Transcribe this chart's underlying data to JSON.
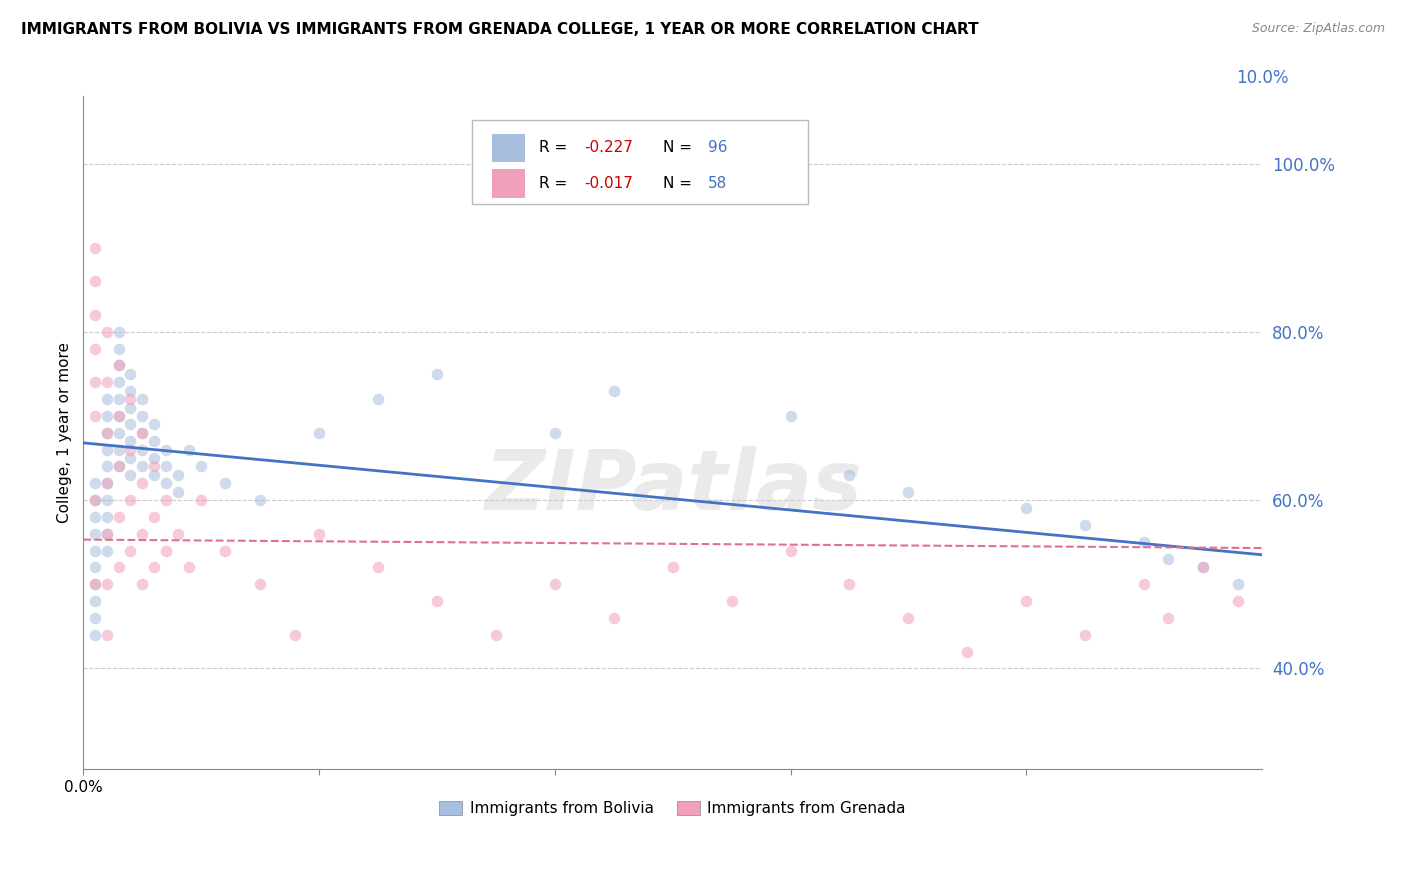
{
  "title": "IMMIGRANTS FROM BOLIVIA VS IMMIGRANTS FROM GRENADA COLLEGE, 1 YEAR OR MORE CORRELATION CHART",
  "source": "Source: ZipAtlas.com",
  "ylabel": "College, 1 year or more",
  "right_yticks": [
    "100.0%",
    "80.0%",
    "60.0%",
    "40.0%"
  ],
  "right_ytick_vals": [
    1.0,
    0.8,
    0.6,
    0.4
  ],
  "bolivia_color": "#a8bede",
  "grenada_color": "#f0a0b8",
  "bolivia_line_color": "#4472c4",
  "grenada_line_color": "#e07090",
  "right_axis_color": "#4472c4",
  "watermark": "ZIPatlas",
  "bolivia_scatter_x": [
    0.001,
    0.001,
    0.001,
    0.001,
    0.001,
    0.001,
    0.001,
    0.001,
    0.001,
    0.001,
    0.002,
    0.002,
    0.002,
    0.002,
    0.002,
    0.002,
    0.002,
    0.002,
    0.002,
    0.002,
    0.003,
    0.003,
    0.003,
    0.003,
    0.003,
    0.003,
    0.003,
    0.003,
    0.003,
    0.004,
    0.004,
    0.004,
    0.004,
    0.004,
    0.004,
    0.004,
    0.005,
    0.005,
    0.005,
    0.005,
    0.005,
    0.006,
    0.006,
    0.006,
    0.006,
    0.007,
    0.007,
    0.007,
    0.008,
    0.008,
    0.009,
    0.01,
    0.012,
    0.015,
    0.02,
    0.025,
    0.03,
    0.04,
    0.045,
    0.06,
    0.065,
    0.07,
    0.08,
    0.085,
    0.09,
    0.092,
    0.095,
    0.098
  ],
  "bolivia_scatter_y": [
    0.62,
    0.6,
    0.58,
    0.56,
    0.54,
    0.52,
    0.5,
    0.48,
    0.46,
    0.44,
    0.72,
    0.7,
    0.68,
    0.66,
    0.64,
    0.62,
    0.6,
    0.58,
    0.56,
    0.54,
    0.8,
    0.78,
    0.76,
    0.74,
    0.72,
    0.7,
    0.68,
    0.66,
    0.64,
    0.75,
    0.73,
    0.71,
    0.69,
    0.67,
    0.65,
    0.63,
    0.72,
    0.7,
    0.68,
    0.66,
    0.64,
    0.69,
    0.67,
    0.65,
    0.63,
    0.66,
    0.64,
    0.62,
    0.63,
    0.61,
    0.66,
    0.64,
    0.62,
    0.6,
    0.68,
    0.72,
    0.75,
    0.68,
    0.73,
    0.7,
    0.63,
    0.61,
    0.59,
    0.57,
    0.55,
    0.53,
    0.52,
    0.5
  ],
  "grenada_scatter_x": [
    0.001,
    0.001,
    0.001,
    0.001,
    0.001,
    0.001,
    0.001,
    0.001,
    0.002,
    0.002,
    0.002,
    0.002,
    0.002,
    0.002,
    0.002,
    0.003,
    0.003,
    0.003,
    0.003,
    0.003,
    0.004,
    0.004,
    0.004,
    0.004,
    0.005,
    0.005,
    0.005,
    0.005,
    0.006,
    0.006,
    0.006,
    0.007,
    0.007,
    0.008,
    0.009,
    0.01,
    0.012,
    0.015,
    0.018,
    0.02,
    0.025,
    0.03,
    0.035,
    0.04,
    0.045,
    0.05,
    0.055,
    0.06,
    0.065,
    0.07,
    0.075,
    0.08,
    0.085,
    0.09,
    0.092,
    0.095,
    0.098
  ],
  "grenada_scatter_y": [
    0.9,
    0.86,
    0.82,
    0.78,
    0.74,
    0.7,
    0.6,
    0.5,
    0.8,
    0.74,
    0.68,
    0.62,
    0.56,
    0.5,
    0.44,
    0.76,
    0.7,
    0.64,
    0.58,
    0.52,
    0.72,
    0.66,
    0.6,
    0.54,
    0.68,
    0.62,
    0.56,
    0.5,
    0.64,
    0.58,
    0.52,
    0.6,
    0.54,
    0.56,
    0.52,
    0.6,
    0.54,
    0.5,
    0.44,
    0.56,
    0.52,
    0.48,
    0.44,
    0.5,
    0.46,
    0.52,
    0.48,
    0.54,
    0.5,
    0.46,
    0.42,
    0.48,
    0.44,
    0.5,
    0.46,
    0.52,
    0.48
  ],
  "xlim": [
    0.0,
    0.1
  ],
  "ylim": [
    0.28,
    1.08
  ],
  "bolivia_trend_x": [
    0.0,
    0.1
  ],
  "bolivia_trend_y": [
    0.668,
    0.535
  ],
  "grenada_trend_x": [
    0.0,
    0.1
  ],
  "grenada_trend_y": [
    0.553,
    0.543
  ],
  "grid_color": "#cccccc",
  "background_color": "#ffffff",
  "title_fontsize": 11,
  "axis_label_fontsize": 11,
  "tick_fontsize": 11,
  "legend_fontsize": 11,
  "scatter_size": 70,
  "scatter_alpha": 0.55,
  "legend_bottom_labels": [
    "Immigrants from Bolivia",
    "Immigrants from Grenada"
  ]
}
